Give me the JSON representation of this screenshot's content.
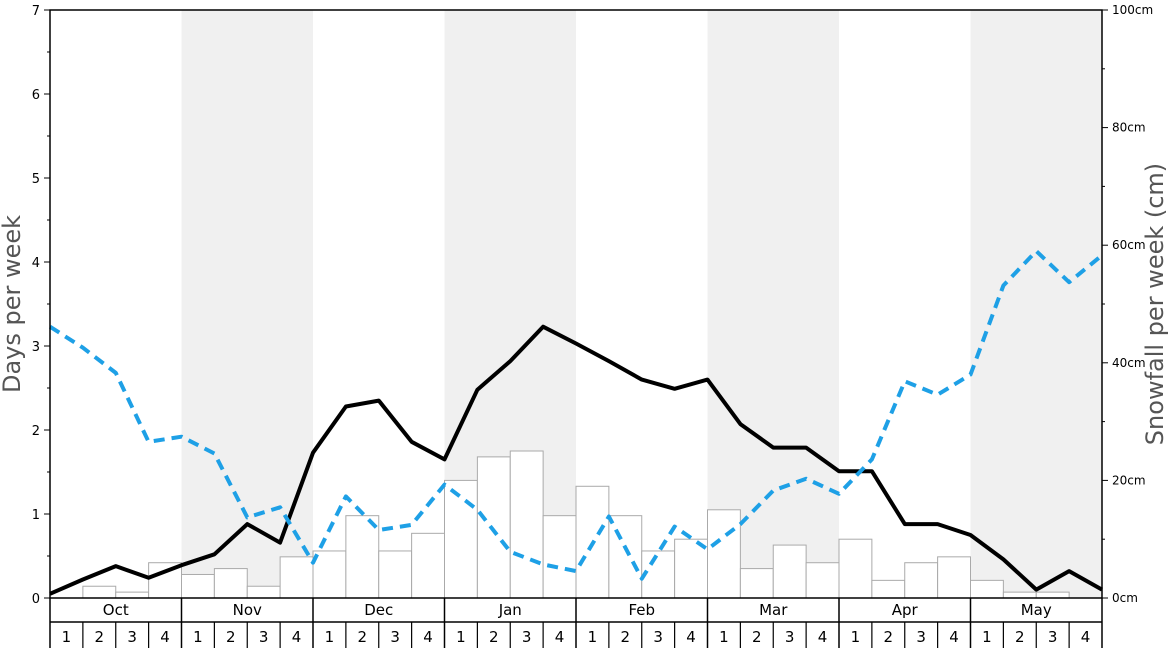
{
  "chart_data": {
    "type": "bar",
    "title": "",
    "ylabel_left": "Days per week",
    "ylabel_right": "Snowfall per week (cm)",
    "ylim_left": [
      0,
      7
    ],
    "ylim_right": [
      0,
      100
    ],
    "left_ticks": [
      "0",
      "1",
      "2",
      "3",
      "4",
      "5",
      "6",
      "7"
    ],
    "right_ticks": [
      "0cm",
      "20cm",
      "40cm",
      "60cm",
      "80cm",
      "100cm"
    ],
    "months": [
      "Oct",
      "Nov",
      "Dec",
      "Jan",
      "Feb",
      "Mar",
      "Apr",
      "May"
    ],
    "week_labels": [
      "1",
      "2",
      "3",
      "4"
    ],
    "colors": {
      "bars_stroke": "#aaaaaa",
      "solid_line": "#000000",
      "dashed_line": "#1ea0e6",
      "band": "#f0f0f0"
    },
    "series": [
      {
        "kind": "bar",
        "axis": "right",
        "values": [
          0,
          2,
          1,
          6,
          4,
          5,
          2,
          7,
          8,
          14,
          8,
          11,
          20,
          24,
          25,
          14,
          19,
          14,
          8,
          10,
          15,
          5,
          9,
          6,
          10,
          3,
          6,
          7,
          3,
          1,
          1,
          0
        ]
      },
      {
        "kind": "line",
        "style": "solid",
        "axis": "left",
        "values": [
          0.05,
          0.22,
          0.38,
          0.24,
          0.39,
          0.52,
          0.88,
          0.66,
          1.73,
          2.28,
          2.35,
          1.86,
          1.65,
          2.48,
          2.82,
          3.23,
          3.03,
          2.82,
          2.6,
          2.49,
          2.6,
          2.07,
          1.79,
          1.79,
          1.51,
          1.51,
          0.88,
          0.88,
          0.75,
          0.46,
          0.1,
          0.32,
          0.1
        ]
      },
      {
        "kind": "line",
        "style": "dashed",
        "axis": "left",
        "values": [
          3.23,
          2.98,
          2.68,
          1.86,
          1.92,
          1.72,
          0.96,
          1.08,
          0.42,
          1.21,
          0.81,
          0.87,
          1.35,
          1.05,
          0.55,
          0.4,
          0.32,
          0.97,
          0.23,
          0.85,
          0.58,
          0.88,
          1.28,
          1.42,
          1.24,
          1.65,
          2.58,
          2.42,
          2.66,
          3.72,
          4.13,
          3.76,
          4.08
        ]
      }
    ]
  }
}
